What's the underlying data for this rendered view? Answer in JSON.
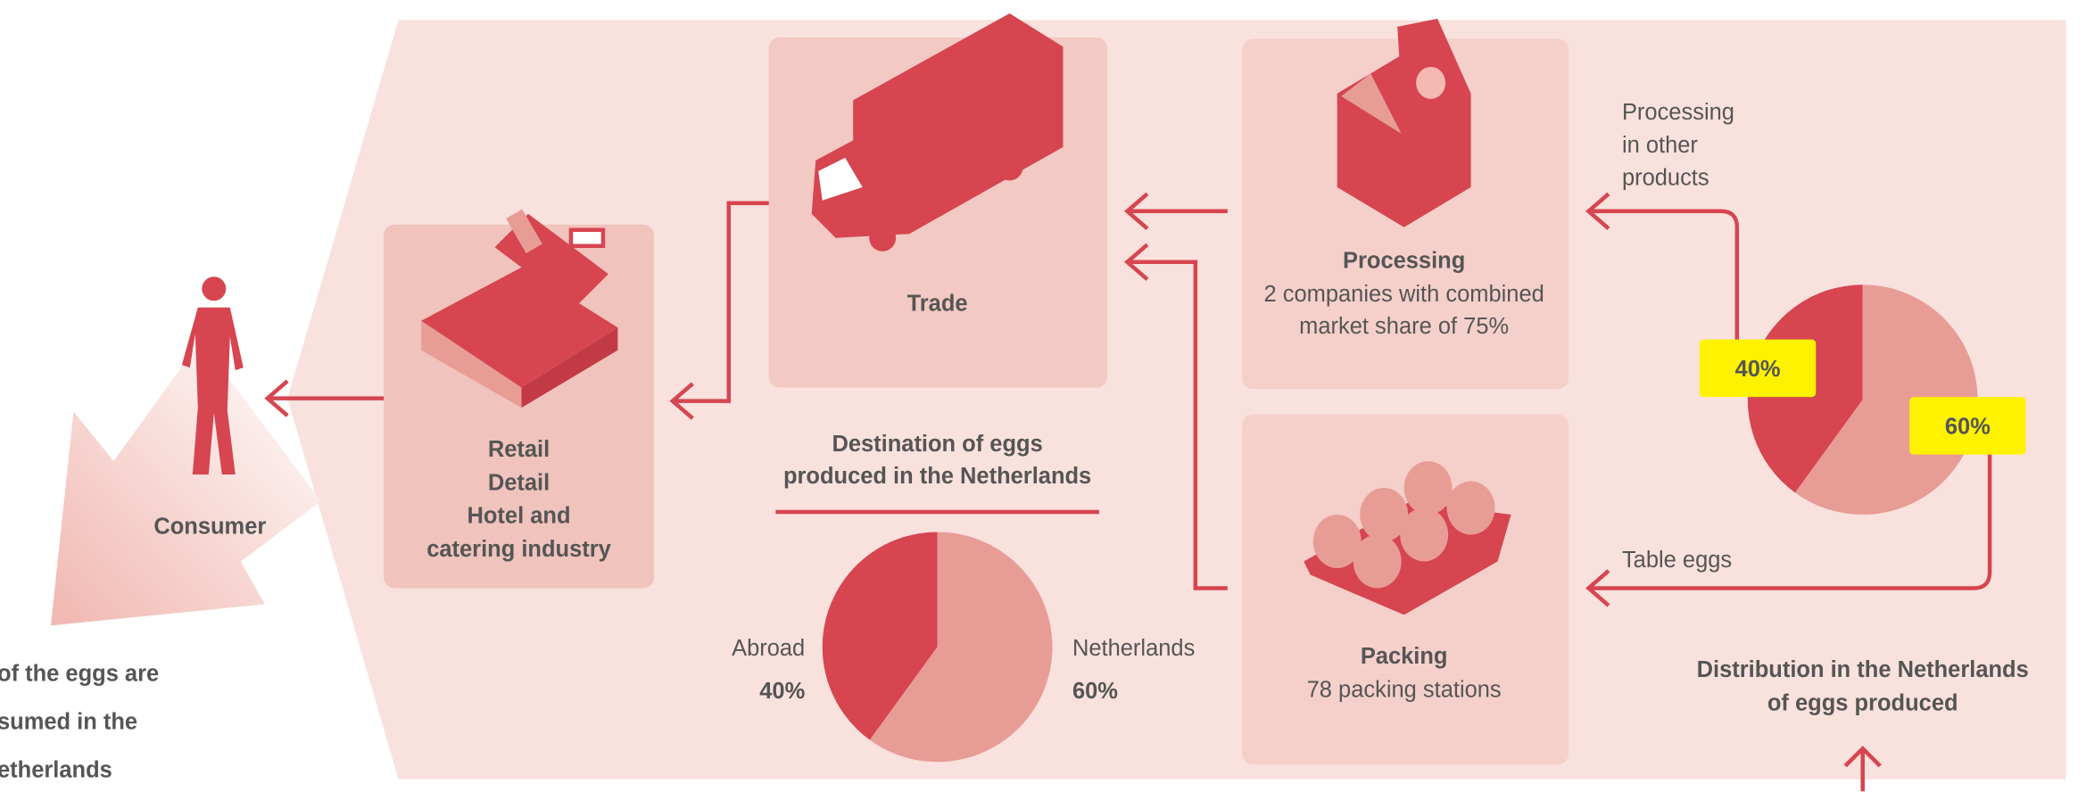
{
  "consumer": {
    "label": "Consumer"
  },
  "footnote": {
    "lines": [
      "of the eggs are",
      "sumed in the",
      "etherlands"
    ]
  },
  "retail": {
    "lines": [
      "Retail",
      "Detail",
      "Hotel and",
      "catering industry"
    ]
  },
  "trade": {
    "label": "Trade"
  },
  "processing": {
    "title": "Processing",
    "lines": [
      "2 companies with combined",
      "market share of 75%"
    ]
  },
  "packing": {
    "title": "Packing",
    "text": "78 packing stations"
  },
  "destination_pie": {
    "title_lines": [
      "Destination of eggs",
      "produced in the Netherlands"
    ],
    "slices": [
      {
        "name": "Abroad",
        "value": 40,
        "label": "40%",
        "color": "#d64550"
      },
      {
        "name": "Netherlands",
        "value": 60,
        "label": "60%",
        "color": "#e89c96"
      }
    ]
  },
  "distribution_pie": {
    "title_lines": [
      "Distribution in the Netherlands",
      "of eggs produced"
    ],
    "slices": [
      {
        "value": 40,
        "label": "40%",
        "color": "#d64550"
      },
      {
        "value": 60,
        "label": "60%",
        "color": "#e89c96"
      }
    ],
    "arrow_labels": {
      "processing": [
        "Processing",
        "in other",
        "products"
      ],
      "table": "Table eggs"
    }
  }
}
